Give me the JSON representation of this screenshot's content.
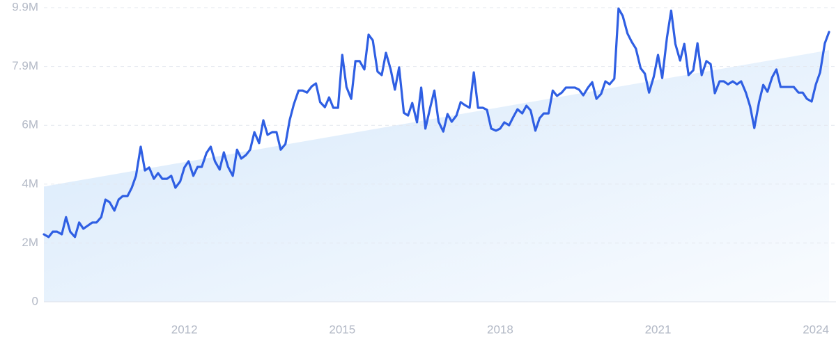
{
  "chart_data": {
    "type": "line",
    "ylim": [
      0,
      9900000
    ],
    "yticks": [
      0,
      {
        "value": 1980000,
        "label": "2M"
      },
      {
        "value": 3960000,
        "label": "4M"
      },
      {
        "value": 5940000,
        "label": "6M"
      },
      {
        "value": 7920000,
        "label": "7.9M"
      },
      {
        "value": 9900000,
        "label": "9.9M"
      }
    ],
    "xlim": [
      2009.33,
      2024.25
    ],
    "xticks": [
      2012,
      2015,
      2018,
      2021,
      2024
    ],
    "grid": true,
    "x": [
      2009.33,
      2009.42,
      2009.5,
      2009.58,
      2009.67,
      2009.75,
      2009.83,
      2009.92,
      2010,
      2010.08,
      2010.17,
      2010.25,
      2010.33,
      2010.42,
      2010.5,
      2010.58,
      2010.67,
      2010.75,
      2010.83,
      2010.92,
      2011,
      2011.08,
      2011.17,
      2011.25,
      2011.33,
      2011.42,
      2011.5,
      2011.58,
      2011.67,
      2011.75,
      2011.83,
      2011.92,
      2012,
      2012.08,
      2012.17,
      2012.25,
      2012.33,
      2012.42,
      2012.5,
      2012.58,
      2012.67,
      2012.75,
      2012.83,
      2012.92,
      2013,
      2013.08,
      2013.17,
      2013.25,
      2013.33,
      2013.42,
      2013.5,
      2013.58,
      2013.67,
      2013.75,
      2013.83,
      2013.92,
      2014,
      2014.08,
      2014.17,
      2014.25,
      2014.33,
      2014.42,
      2014.5,
      2014.58,
      2014.67,
      2014.75,
      2014.83,
      2014.92,
      2015,
      2015.08,
      2015.17,
      2015.25,
      2015.33,
      2015.42,
      2015.5,
      2015.58,
      2015.67,
      2015.75,
      2015.83,
      2015.92,
      2016,
      2016.08,
      2016.17,
      2016.25,
      2016.33,
      2016.42,
      2016.5,
      2016.58,
      2016.67,
      2016.75,
      2016.83,
      2016.92,
      2017,
      2017.08,
      2017.17,
      2017.25,
      2017.33,
      2017.42,
      2017.5,
      2017.58,
      2017.67,
      2017.75,
      2017.83,
      2017.92,
      2018,
      2018.08,
      2018.17,
      2018.25,
      2018.33,
      2018.42,
      2018.5,
      2018.58,
      2018.67,
      2018.75,
      2018.83,
      2018.92,
      2019,
      2019.08,
      2019.17,
      2019.25,
      2019.33,
      2019.42,
      2019.5,
      2019.58,
      2019.67,
      2019.75,
      2019.83,
      2019.92,
      2020,
      2020.08,
      2020.17,
      2020.25,
      2020.33,
      2020.42,
      2020.5,
      2020.58,
      2020.67,
      2020.75,
      2020.83,
      2020.92,
      2021,
      2021.08,
      2021.17,
      2021.25,
      2021.33,
      2021.42,
      2021.5,
      2021.58,
      2021.67,
      2021.75,
      2021.83,
      2021.92,
      2022,
      2022.08,
      2022.17,
      2022.25,
      2022.33,
      2022.42,
      2022.5,
      2022.58,
      2022.67,
      2022.75,
      2022.83,
      2022.92,
      2023,
      2023.08,
      2023.17,
      2023.25,
      2023.33,
      2023.42,
      2023.5,
      2023.58,
      2023.67,
      2023.75,
      2023.83,
      2023.92,
      2024,
      2024.08,
      2024.17,
      2024.25
    ],
    "series": [
      {
        "color": "#2f5fe3",
        "values": [
          2270000,
          2180000,
          2360000,
          2360000,
          2270000,
          2850000,
          2360000,
          2180000,
          2670000,
          2460000,
          2570000,
          2670000,
          2670000,
          2850000,
          3440000,
          3350000,
          3070000,
          3440000,
          3560000,
          3560000,
          3840000,
          4240000,
          5220000,
          4420000,
          4520000,
          4140000,
          4330000,
          4140000,
          4140000,
          4240000,
          3840000,
          4050000,
          4520000,
          4730000,
          4240000,
          4540000,
          4540000,
          5010000,
          5220000,
          4730000,
          4450000,
          5030000,
          4540000,
          4240000,
          5120000,
          4820000,
          4940000,
          5120000,
          5710000,
          5340000,
          6110000,
          5620000,
          5710000,
          5710000,
          5120000,
          5310000,
          6110000,
          6650000,
          7110000,
          7110000,
          7040000,
          7250000,
          7350000,
          6720000,
          6550000,
          6880000,
          6530000,
          6530000,
          8310000,
          7230000,
          6830000,
          8100000,
          8100000,
          7820000,
          8990000,
          8800000,
          7750000,
          7630000,
          8380000,
          7820000,
          7140000,
          7890000,
          6360000,
          6270000,
          6690000,
          6040000,
          7210000,
          5830000,
          6530000,
          7110000,
          6060000,
          5730000,
          6320000,
          6060000,
          6270000,
          6720000,
          6620000,
          6530000,
          7720000,
          6530000,
          6530000,
          6460000,
          5830000,
          5760000,
          5830000,
          6040000,
          5940000,
          6220000,
          6480000,
          6340000,
          6600000,
          6440000,
          5760000,
          6180000,
          6340000,
          6340000,
          7110000,
          6930000,
          7040000,
          7210000,
          7210000,
          7210000,
          7140000,
          6950000,
          7210000,
          7390000,
          6830000,
          7000000,
          7420000,
          7320000,
          7510000,
          9870000,
          9620000,
          9030000,
          8750000,
          8520000,
          7860000,
          7680000,
          7040000,
          7580000,
          8310000,
          7530000,
          8890000,
          9800000,
          8680000,
          8120000,
          8680000,
          7630000,
          7790000,
          8700000,
          7630000,
          8100000,
          8000000,
          7020000,
          7420000,
          7420000,
          7320000,
          7420000,
          7320000,
          7420000,
          7040000,
          6580000,
          5850000,
          6720000,
          7300000,
          7070000,
          7560000,
          7820000,
          7230000,
          7230000,
          7230000,
          7230000,
          7040000,
          7040000,
          6830000,
          6740000,
          7320000,
          7720000,
          8700000,
          9080000
        ]
      }
    ],
    "trend": {
      "color": "#d6e8fb",
      "x": [
        2009.33,
        2024.25
      ],
      "values": [
        3880000,
        8470000
      ]
    }
  }
}
